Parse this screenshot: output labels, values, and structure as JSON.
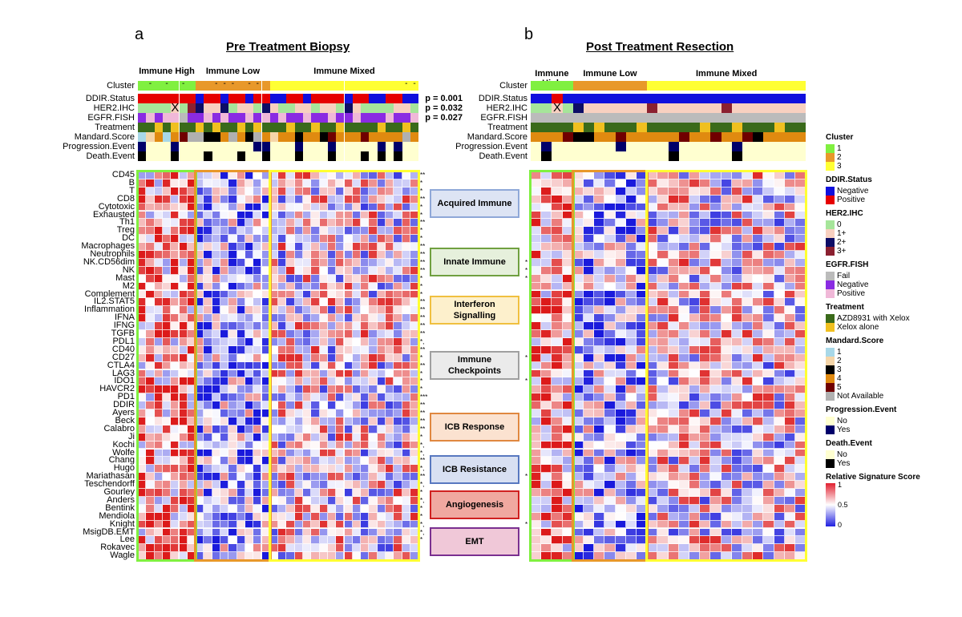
{
  "colors": {
    "cluster": {
      "1": "#80f040",
      "2": "#e8982a",
      "3": "#ffff33"
    },
    "ddir": {
      "Negative": "#1010dd",
      "Positive": "#e60000"
    },
    "her2": {
      "0": "#a6e59a",
      "1+": "#f8d0c0",
      "2+": "#0d0d66",
      "3+": "#8b2030"
    },
    "egfr": {
      "Fail": "#bbbbbb",
      "Negative": "#8a2be2",
      "Positive": "#f0b8d8"
    },
    "treatment": {
      "AZD8931 with Xelox": "#3a6a1a",
      "Xelox alone": "#f0c020"
    },
    "mandard": {
      "1": "#a8d8e8",
      "2": "#f5d5a8",
      "3": "#000000",
      "4": "#e08a10",
      "5": "#700000",
      "Not Available": "#b0b0b0"
    },
    "progression": {
      "No": "#ffffd0",
      "Yes": "#00006a"
    },
    "death": {
      "No": "#ffffd0",
      "Yes": "#000000"
    },
    "heat_low": "#1a1adc",
    "heat_mid": "#ffffff",
    "heat_high": "#dc1a1a"
  },
  "panel_a": {
    "letter": "a",
    "title": "Pre Treatment Biopsy",
    "cluster_titles": [
      "Immune High",
      "Immune Low",
      "Immune Mixed"
    ],
    "p_values": [
      "p = 0.001",
      "p = 0.032",
      "p = 0.027"
    ],
    "cluster_colors": [
      "1",
      "1",
      "1",
      "1",
      "1",
      "1",
      "1",
      "2",
      "2",
      "2",
      "2",
      "2",
      "2",
      "2",
      "2",
      "2",
      "3",
      "3",
      "3",
      "3",
      "3",
      "3",
      "3",
      "3",
      "3",
      "3",
      "3",
      "3",
      "3",
      "3",
      "3",
      "3",
      "3",
      "3"
    ],
    "cluster_dashes": [
      1,
      3,
      5,
      9,
      10,
      11,
      13,
      14,
      32,
      33
    ],
    "rows": {
      "DDIR.Status": [
        "Positive",
        "Positive",
        "Positive",
        "Positive",
        "Positive",
        "Positive",
        "Positive",
        "Negative",
        "Positive",
        "Positive",
        "Negative",
        "Positive",
        "Positive",
        "Negative",
        "Positive",
        "Positive",
        "Negative",
        "Negative",
        "Positive",
        "Positive",
        "Negative",
        "Positive",
        "Positive",
        "Positive",
        "Positive",
        "Negative",
        "Positive",
        "Positive",
        "Negative",
        "Negative",
        "Positive",
        "Positive",
        "Negative",
        "Negative"
      ],
      "HER2.IHC": [
        "0",
        "0",
        "0",
        "0",
        "1+",
        "0",
        "3+",
        "2+",
        "1+",
        "1+",
        "2+",
        "0",
        "1+",
        "1+",
        "0",
        "2+",
        "1+",
        "0",
        "0",
        "1+",
        "1+",
        "0",
        "1+",
        "1+",
        "0",
        "2+",
        "1+",
        "0",
        "0",
        "0",
        "0",
        "1+",
        "1+",
        "0"
      ],
      "EGFR.FISH": [
        "Negative",
        "Positive",
        "Negative",
        "Positive",
        "Positive",
        "Fail",
        "Negative",
        "Negative",
        "Positive",
        "Negative",
        "Positive",
        "Negative",
        "Negative",
        "Positive",
        "Negative",
        "Positive",
        "Negative",
        "Positive",
        "Negative",
        "Negative",
        "Positive",
        "Negative",
        "Negative",
        "Positive",
        "Negative",
        "Negative",
        "Positive",
        "Negative",
        "Negative",
        "Negative",
        "Positive",
        "Negative",
        "Negative",
        "Positive"
      ],
      "Treatment": [
        "AZD8931 with Xelox",
        "AZD8931 with Xelox",
        "Xelox alone",
        "AZD8931 with Xelox",
        "Xelox alone",
        "AZD8931 with Xelox",
        "AZD8931 with Xelox",
        "Xelox alone",
        "AZD8931 with Xelox",
        "Xelox alone",
        "AZD8931 with Xelox",
        "AZD8931 with Xelox",
        "Xelox alone",
        "AZD8931 with Xelox",
        "Xelox alone",
        "AZD8931 with Xelox",
        "AZD8931 with Xelox",
        "AZD8931 with Xelox",
        "Xelox alone",
        "AZD8931 with Xelox",
        "AZD8931 with Xelox",
        "Xelox alone",
        "AZD8931 with Xelox",
        "AZD8931 with Xelox",
        "Xelox alone",
        "AZD8931 with Xelox",
        "AZD8931 with Xelox",
        "AZD8931 with Xelox",
        "AZD8931 with Xelox",
        "Xelox alone",
        "AZD8931 with Xelox",
        "AZD8931 with Xelox",
        "Xelox alone",
        "AZD8931 with Xelox"
      ],
      "Mandard.Score": [
        "1",
        "2",
        "4",
        "1",
        "4",
        "5",
        "Not Available",
        "Not Available",
        "3",
        "3",
        "4",
        "Not Available",
        "4",
        "3",
        "Not Available",
        "4",
        "2",
        "4",
        "4",
        "3",
        "4",
        "4",
        "3",
        "5",
        "4",
        "4",
        "4",
        "5",
        "4",
        "4",
        "4",
        "4",
        "Not Available",
        "4"
      ],
      "Progression.Event": [
        "Yes",
        "No",
        "No",
        "No",
        "Yes",
        "No",
        "No",
        "No",
        "No",
        "No",
        "No",
        "No",
        "No",
        "No",
        "Yes",
        "Yes",
        "No",
        "No",
        "No",
        "Yes",
        "No",
        "No",
        "No",
        "Yes",
        "No",
        "No",
        "No",
        "No",
        "No",
        "Yes",
        "No",
        "Yes",
        "No",
        "No"
      ],
      "Death.Event": [
        "Yes",
        "No",
        "No",
        "No",
        "Yes",
        "No",
        "No",
        "No",
        "Yes",
        "No",
        "No",
        "No",
        "Yes",
        "No",
        "No",
        "Yes",
        "No",
        "No",
        "No",
        "Yes",
        "No",
        "No",
        "No",
        "Yes",
        "No",
        "No",
        "No",
        "Yes",
        "No",
        "Yes",
        "No",
        "Yes",
        "No",
        "No"
      ]
    },
    "x_marks": [
      {
        "row": "HER2.IHC",
        "col": 4,
        "text": "X"
      }
    ],
    "significance": [
      "**",
      "*",
      "*",
      "**",
      "*",
      "*",
      "**",
      "*",
      "*",
      "**",
      "**",
      "**",
      "**",
      "*",
      "*",
      "*",
      "**",
      "**",
      "**",
      "**",
      "**",
      "*,",
      "**",
      "*",
      "**",
      "*",
      "*",
      "*",
      "***",
      "**",
      "**",
      "**",
      "**",
      "*",
      "*,",
      "*,",
      "**",
      "*,",
      "**",
      "*,",
      "*",
      "*,",
      "*",
      "*",
      "*,",
      "*,",
      "*"
    ]
  },
  "panel_b": {
    "letter": "b",
    "title": "Post Treatment Resection",
    "cluster_titles": [
      "Immune High",
      "Immune Low",
      "Immune Mixed"
    ],
    "cluster_colors": [
      "1",
      "1",
      "1",
      "1",
      "2",
      "2",
      "2",
      "2",
      "2",
      "2",
      "2",
      "3",
      "3",
      "3",
      "3",
      "3",
      "3",
      "3",
      "3",
      "3",
      "3",
      "3",
      "3",
      "3",
      "3",
      "3"
    ],
    "rows": {
      "DDIR.Status": [
        "Negative",
        "Negative",
        "Positive",
        "Negative",
        "Negative",
        "Negative",
        "Negative",
        "Negative",
        "Negative",
        "Negative",
        "Negative",
        "Negative",
        "Negative",
        "Negative",
        "Negative",
        "Negative",
        "Negative",
        "Negative",
        "Negative",
        "Negative",
        "Negative",
        "Negative",
        "Negative",
        "Negative",
        "Negative",
        "Negative"
      ],
      "HER2.IHC": [
        "0",
        "0",
        "1+",
        "0",
        "2+",
        "1+",
        "1+",
        "1+",
        "1+",
        "1+",
        "1+",
        "3+",
        "1+",
        "1+",
        "1+",
        "1+",
        "1+",
        "1+",
        "3+",
        "1+",
        "1+",
        "1+",
        "1+",
        "1+",
        "1+",
        "1+"
      ],
      "EGFR.FISH": [
        "Fail",
        "Fail",
        "Fail",
        "Fail",
        "Fail",
        "Fail",
        "Fail",
        "Fail",
        "Fail",
        "Fail",
        "Fail",
        "Fail",
        "Fail",
        "Fail",
        "Fail",
        "Fail",
        "Fail",
        "Fail",
        "Fail",
        "Fail",
        "Fail",
        "Fail",
        "Fail",
        "Fail",
        "Fail",
        "Fail"
      ],
      "Treatment": [
        "AZD8931 with Xelox",
        "AZD8931 with Xelox",
        "AZD8931 with Xelox",
        "AZD8931 with Xelox",
        "Xelox alone",
        "AZD8931 with Xelox",
        "Xelox alone",
        "AZD8931 with Xelox",
        "AZD8931 with Xelox",
        "AZD8931 with Xelox",
        "Xelox alone",
        "AZD8931 with Xelox",
        "AZD8931 with Xelox",
        "AZD8931 with Xelox",
        "AZD8931 with Xelox",
        "AZD8931 with Xelox",
        "Xelox alone",
        "AZD8931 with Xelox",
        "AZD8931 with Xelox",
        "Xelox alone",
        "AZD8931 with Xelox",
        "AZD8931 with Xelox",
        "AZD8931 with Xelox",
        "Xelox alone",
        "AZD8931 with Xelox",
        "AZD8931 with Xelox"
      ],
      "Mandard.Score": [
        "4",
        "4",
        "4",
        "5",
        "3",
        "3",
        "4",
        "4",
        "5",
        "4",
        "4",
        "4",
        "4",
        "4",
        "5",
        "4",
        "4",
        "5",
        "4",
        "4",
        "5",
        "3",
        "4",
        "4",
        "4",
        "4"
      ],
      "Progression.Event": [
        "No",
        "Yes",
        "No",
        "No",
        "No",
        "No",
        "No",
        "No",
        "Yes",
        "No",
        "No",
        "No",
        "No",
        "Yes",
        "No",
        "No",
        "No",
        "No",
        "No",
        "Yes",
        "No",
        "No",
        "No",
        "No",
        "No",
        "No"
      ],
      "Death.Event": [
        "No",
        "Yes",
        "No",
        "No",
        "No",
        "No",
        "No",
        "No",
        "No",
        "No",
        "No",
        "No",
        "No",
        "Yes",
        "No",
        "No",
        "No",
        "No",
        "No",
        "Yes",
        "No",
        "No",
        "No",
        "No",
        "No",
        "No"
      ]
    },
    "x_marks": [
      {
        "row": "HER2.IHC",
        "col": 2,
        "text": "X"
      }
    ],
    "significance": [
      "*",
      "*",
      "*",
      "*",
      "*",
      "*",
      "*"
    ]
  },
  "annotation_labels": [
    "Cluster",
    "DDIR.Status",
    "HER2.IHC",
    "EGFR.FISH",
    "Treatment",
    "Mandard.Score",
    "Progression.Event",
    "Death.Event"
  ],
  "signature_labels": [
    "CD45",
    "B",
    "T",
    "CD8",
    "Cytotoxic",
    "Exhausted",
    "Th1",
    "Treg",
    "DC",
    "Macrophages",
    "Neutrophils",
    "NK.CD56dim",
    "NK",
    "Mast",
    "M2",
    "Complement",
    "IL2.STAT5",
    "Inflammation",
    "IFNA",
    "IFNG",
    "TGFB",
    "PDL1",
    "CD40",
    "CD27",
    "CTLA4",
    "LAG3",
    "IDO1",
    "HAVCR2",
    "PD1",
    "DDIR",
    "Ayers",
    "Beck",
    "Calabro",
    "Ji",
    "Kochi",
    "Wolfe",
    "Chang",
    "Hugo",
    "Mariathasan",
    "Teschendorff",
    "Gourley",
    "Anders",
    "Bentink",
    "Mendiola",
    "Knight",
    "MsigDB.EMT",
    "Lee",
    "Rokavec",
    "Wagle"
  ],
  "categories": [
    {
      "label": "Acquired Immune",
      "border": "#8fa8d8",
      "fill": "#dde4f4"
    },
    {
      "label": "Innate Immune",
      "border": "#70a040",
      "fill": "#e6f0dc"
    },
    {
      "label": "Interferon Signalling",
      "border": "#f0c040",
      "fill": "#fdf0cc"
    },
    {
      "label": "Immune Checkpoints",
      "border": "#a0a0a0",
      "fill": "#ebebeb"
    },
    {
      "label": "ICB Response",
      "border": "#e08840",
      "fill": "#fbe2d0"
    },
    {
      "label": "ICB Resistance",
      "border": "#5878c0",
      "fill": "#d8e0f2"
    },
    {
      "label": "Angiogenesis",
      "border": "#d02020",
      "fill": "#f0a8a0"
    },
    {
      "label": "EMT",
      "border": "#7a3090",
      "fill": "#f0c8d8"
    }
  ],
  "legend": {
    "sections": [
      {
        "title": "Cluster",
        "key": "cluster",
        "items": [
          "1",
          "2",
          "3"
        ]
      },
      {
        "title": "DDIR.Status",
        "key": "ddir",
        "items": [
          "Negative",
          "Positive"
        ]
      },
      {
        "title": "HER2.IHC",
        "key": "her2",
        "items": [
          "0",
          "1+",
          "2+",
          "3+"
        ]
      },
      {
        "title": "EGFR.FISH",
        "key": "egfr",
        "items": [
          "Fail",
          "Negative",
          "Positive"
        ]
      },
      {
        "title": "Treatment",
        "key": "treatment",
        "items": [
          "AZD8931 with Xelox",
          "Xelox alone"
        ]
      },
      {
        "title": "Mandard.Score",
        "key": "mandard",
        "items": [
          "1",
          "2",
          "3",
          "4",
          "5",
          "Not Available"
        ]
      },
      {
        "title": "Progression.Event",
        "key": "progression",
        "items": [
          "No",
          "Yes"
        ]
      },
      {
        "title": "Death.Event",
        "key": "death",
        "items": [
          "No",
          "Yes"
        ]
      }
    ],
    "scale_title": "Relative Signature Score",
    "scale_ticks": [
      "1",
      "0.5",
      "0"
    ]
  }
}
